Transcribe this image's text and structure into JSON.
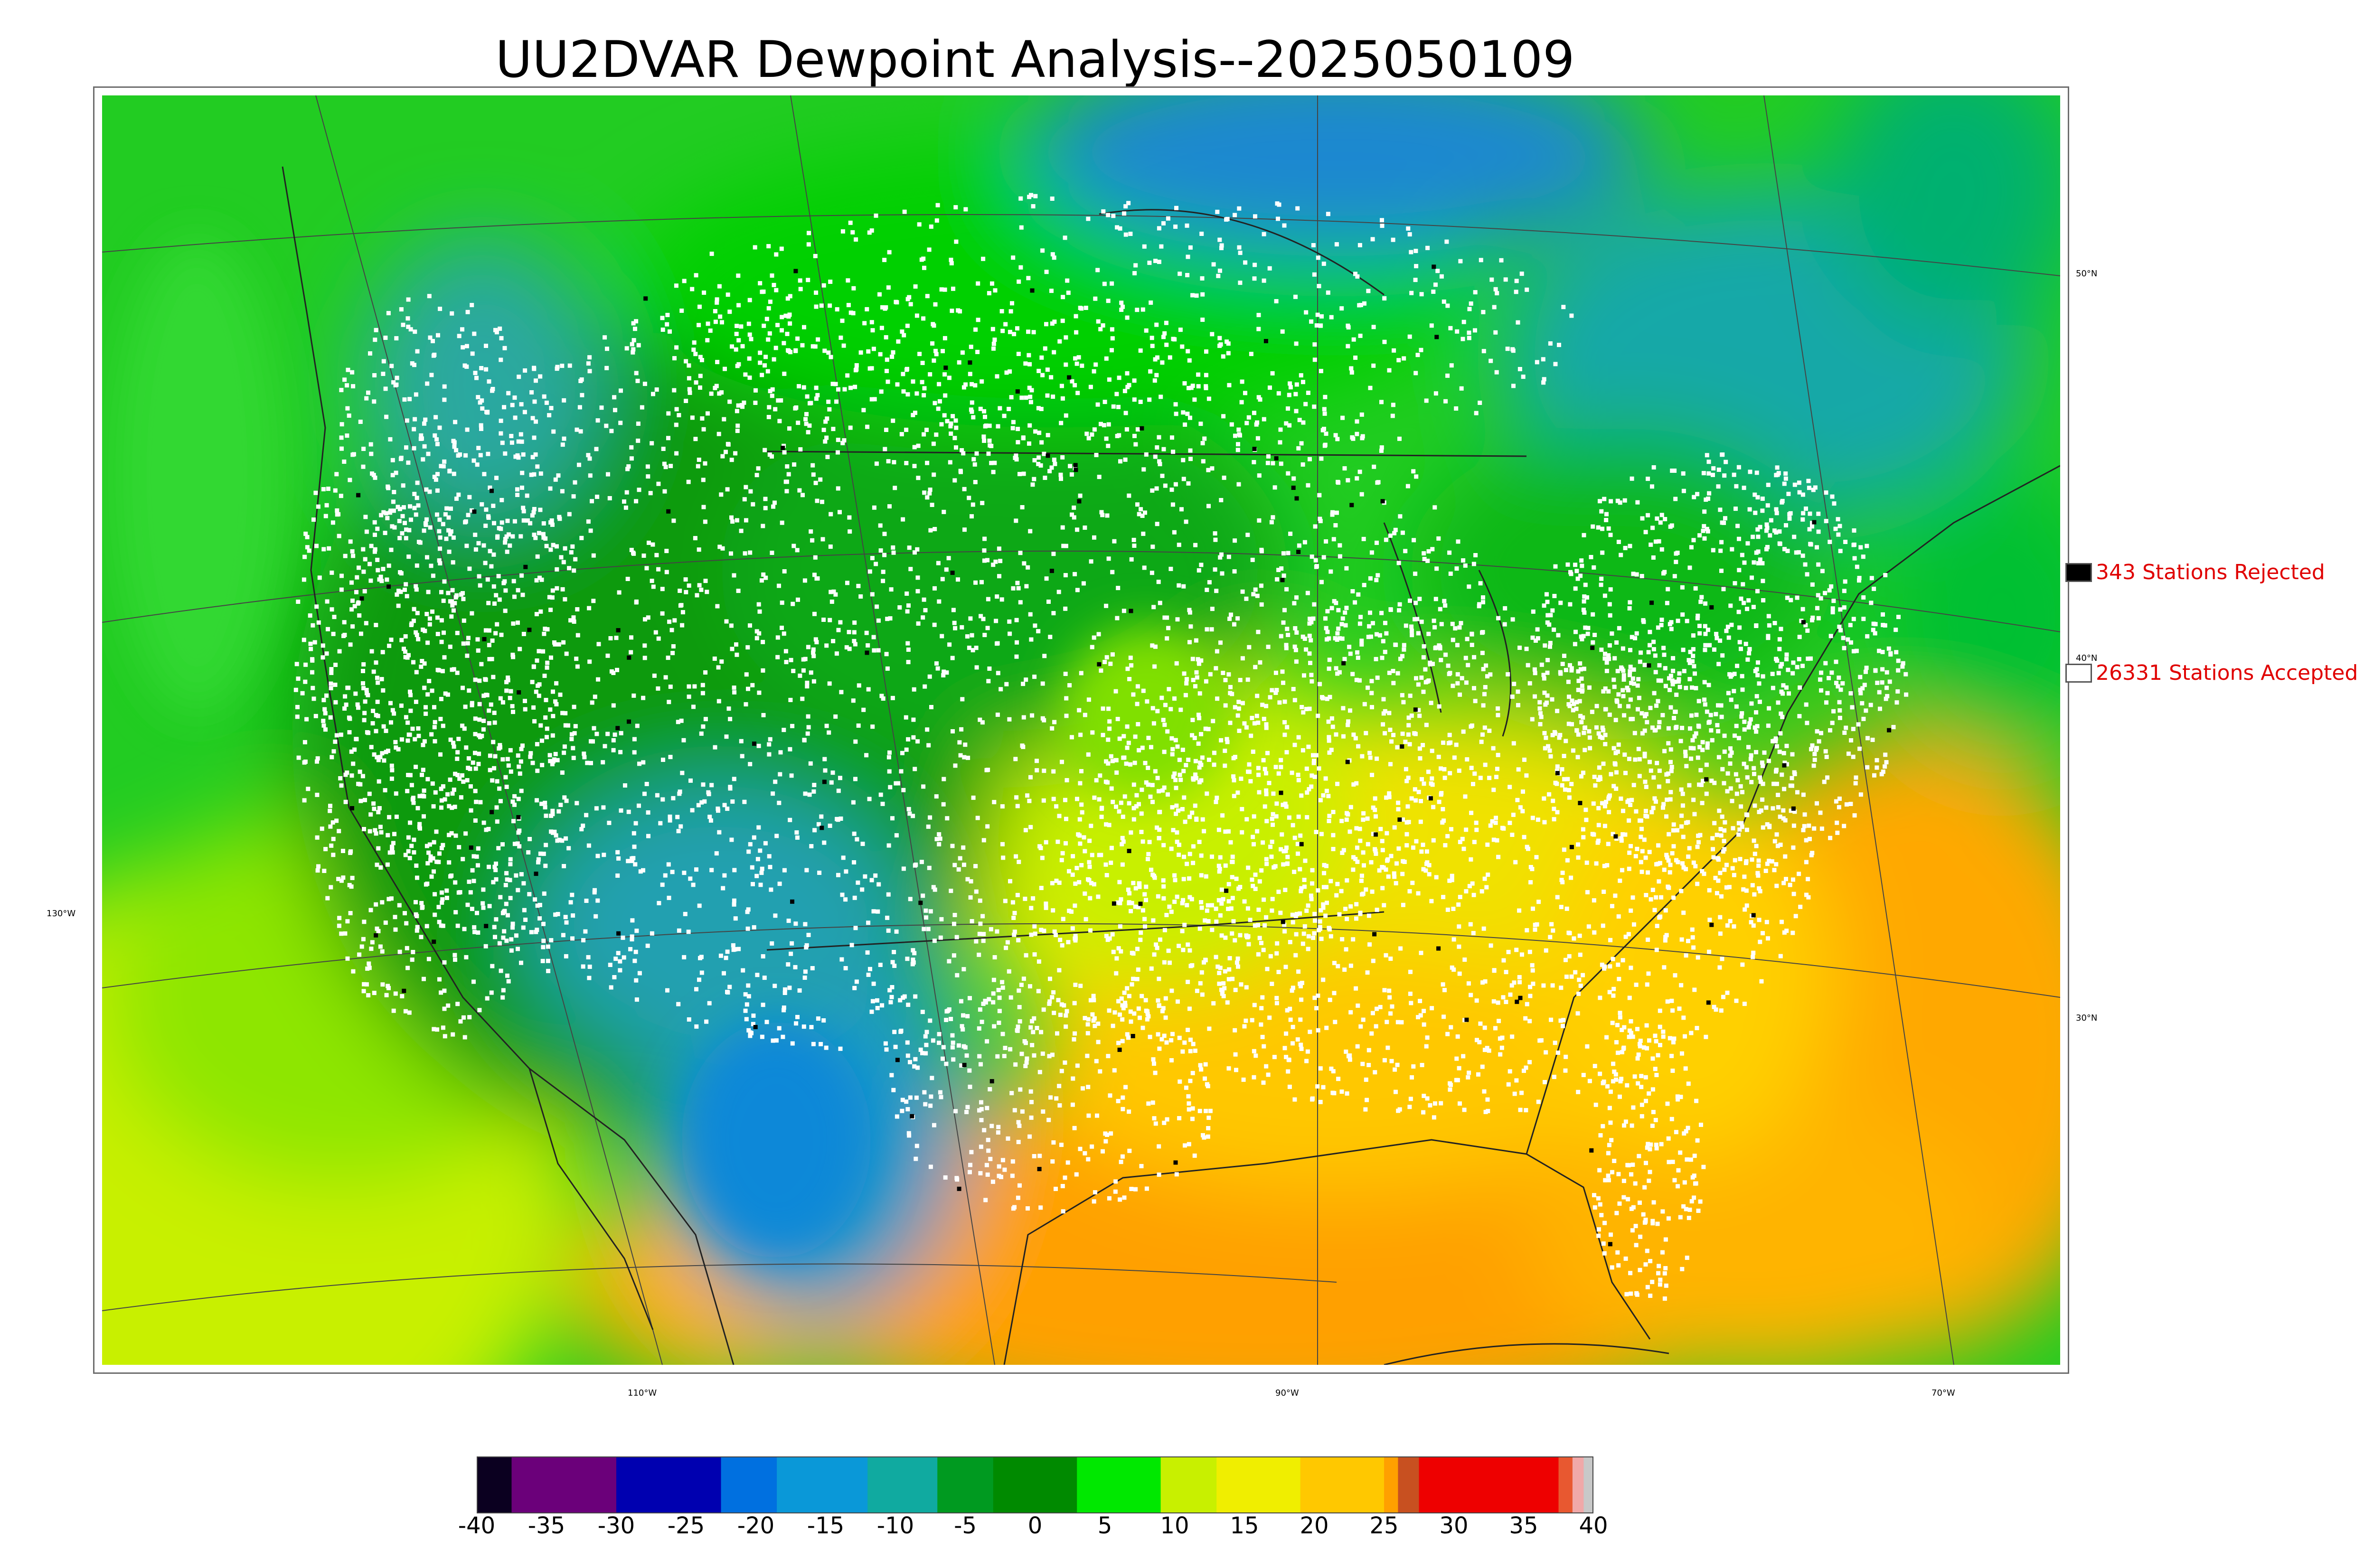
{
  "title": "UU2DVAR Dewpoint Analysis--2025050109",
  "map": {
    "latitude_labels": [
      "50°N",
      "40°N",
      "30°N"
    ],
    "longitude_labels": [
      "130°W",
      "110°W",
      "90°W",
      "70°W"
    ],
    "station_marker_colors": {
      "accepted": "#ffffff",
      "rejected": "#000000"
    }
  },
  "legend": {
    "rejected": {
      "label": "343 Stations Rejected",
      "swatch_color": "#000000",
      "text_color": "#e00000"
    },
    "accepted": {
      "label": "26331 Stations Accepted",
      "swatch_color": "#ffffff",
      "text_color": "#e00000"
    }
  },
  "colorbar": {
    "ticks": [
      "-40",
      "-35",
      "-30",
      "-25",
      "-20",
      "-15",
      "-10",
      "-5",
      "0",
      "5",
      "10",
      "15",
      "20",
      "25",
      "30",
      "35",
      "40"
    ],
    "range": [
      -40,
      40
    ],
    "bands": [
      {
        "from": -40,
        "to": -37.5,
        "color": "#0b0020"
      },
      {
        "from": -37.5,
        "to": -30,
        "color": "#6b007a"
      },
      {
        "from": -30,
        "to": -22.5,
        "color": "#0000b0"
      },
      {
        "from": -22.5,
        "to": -18.5,
        "color": "#0070e0"
      },
      {
        "from": -18.5,
        "to": -12,
        "color": "#0a98d8"
      },
      {
        "from": -12,
        "to": -7,
        "color": "#10aaa0"
      },
      {
        "from": -7,
        "to": -3,
        "color": "#009a20"
      },
      {
        "from": -3,
        "to": 3,
        "color": "#008a00"
      },
      {
        "from": 3,
        "to": 9,
        "color": "#00e800"
      },
      {
        "from": 9,
        "to": 13,
        "color": "#c8f000"
      },
      {
        "from": 13,
        "to": 19,
        "color": "#f0ee00"
      },
      {
        "from": 19,
        "to": 25,
        "color": "#ffc800"
      },
      {
        "from": 25,
        "to": 26,
        "color": "#ffa000"
      },
      {
        "from": 26,
        "to": 27.5,
        "color": "#c85020"
      },
      {
        "from": 27.5,
        "to": 37.5,
        "color": "#ee0000"
      },
      {
        "from": 37.5,
        "to": 38.5,
        "color": "#e85830"
      },
      {
        "from": 38.5,
        "to": 39.3,
        "color": "#f0a8a8"
      },
      {
        "from": 39.3,
        "to": 40,
        "color": "#c8c8c8"
      }
    ]
  }
}
